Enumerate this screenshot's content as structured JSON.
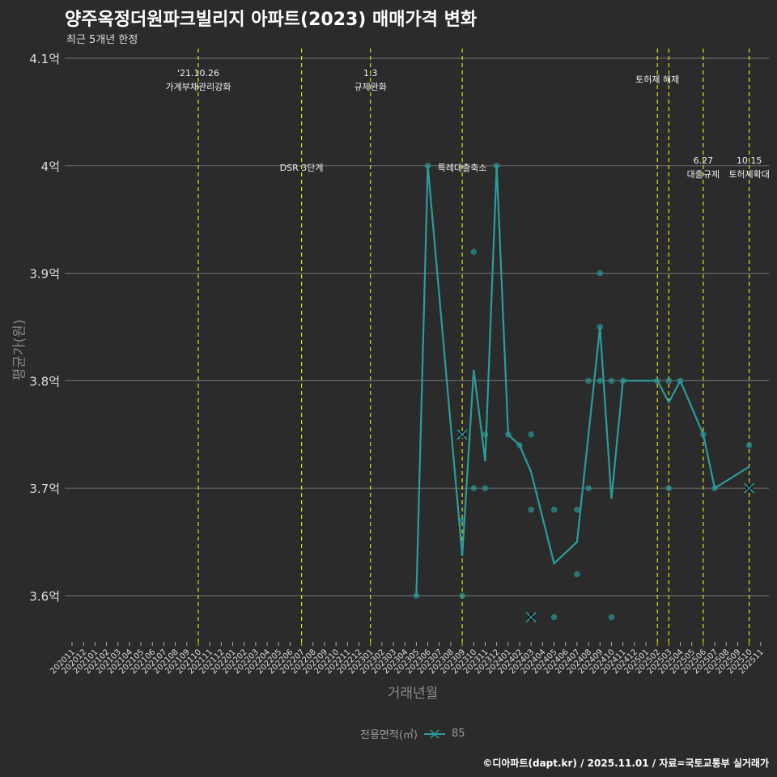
{
  "header": {
    "title": "양주옥정더원파크빌리지 아파트(2023) 매매가격 변화",
    "subtitle": "최근 5개년 한정"
  },
  "credit": "©디아파트(dapt.kr) / 2025.11.01 / 자료=국토교통부 실거래가",
  "legend": {
    "title": "전용면적(㎡)",
    "item": "85"
  },
  "chart_data": {
    "type": "line",
    "title": "양주옥정더원파크빌리지 아파트(2023) 매매가격 변화",
    "xlabel": "거래년월",
    "ylabel": "평균가(원)",
    "ylim": [
      3.56,
      4.11
    ],
    "yticks": [
      {
        "v": 3.6,
        "label": "3.6억"
      },
      {
        "v": 3.7,
        "label": "3.7억"
      },
      {
        "v": 3.8,
        "label": "3.8억"
      },
      {
        "v": 3.9,
        "label": "3.9억"
      },
      {
        "v": 4.0,
        "label": "4억"
      },
      {
        "v": 4.1,
        "label": "4.1억"
      }
    ],
    "categories": [
      "202011",
      "202012",
      "202101",
      "202102",
      "202103",
      "202104",
      "202105",
      "202106",
      "202107",
      "202108",
      "202109",
      "202110",
      "202111",
      "202112",
      "202201",
      "202202",
      "202203",
      "202204",
      "202205",
      "202206",
      "202207",
      "202208",
      "202209",
      "202210",
      "202211",
      "202212",
      "202301",
      "202302",
      "202303",
      "202304",
      "202305",
      "202306",
      "202307",
      "202308",
      "202309",
      "202310",
      "202311",
      "202312",
      "202401",
      "202402",
      "202403",
      "202404",
      "202405",
      "202406",
      "202407",
      "202408",
      "202409",
      "202410",
      "202411",
      "202412",
      "202501",
      "202502",
      "202503",
      "202504",
      "202505",
      "202506",
      "202507",
      "202508",
      "202509",
      "202510",
      "202511"
    ],
    "series": [
      {
        "name": "85",
        "color": "#2a9d9a",
        "line": [
          [
            "202305",
            3.6
          ],
          [
            "202306",
            4.0
          ],
          [
            "202309",
            3.637
          ],
          [
            "202310",
            3.81
          ],
          [
            "202311",
            3.725
          ],
          [
            "202312",
            4.0
          ],
          [
            "202401",
            3.75
          ],
          [
            "202402",
            3.74
          ],
          [
            "202403",
            3.715
          ],
          [
            "202405",
            3.63
          ],
          [
            "202407",
            3.65
          ],
          [
            "202409",
            3.85
          ],
          [
            "202410",
            3.69
          ],
          [
            "202411",
            3.8
          ],
          [
            "202502",
            3.8
          ],
          [
            "202503",
            3.78
          ],
          [
            "202504",
            3.8
          ],
          [
            "202506",
            3.75
          ],
          [
            "202507",
            3.7
          ],
          [
            "202510",
            3.72
          ]
        ],
        "points": [
          [
            "202305",
            3.6
          ],
          [
            "202306",
            4.0
          ],
          [
            "202309",
            3.67
          ],
          [
            "202309",
            3.6
          ],
          [
            "202310",
            3.92
          ],
          [
            "202310",
            3.7
          ],
          [
            "202311",
            3.75
          ],
          [
            "202311",
            3.7
          ],
          [
            "202312",
            4.0
          ],
          [
            "202401",
            3.75
          ],
          [
            "202402",
            3.74
          ],
          [
            "202403",
            3.75
          ],
          [
            "202403",
            3.68
          ],
          [
            "202405",
            3.68
          ],
          [
            "202405",
            3.58
          ],
          [
            "202407",
            3.68
          ],
          [
            "202407",
            3.62
          ],
          [
            "202408",
            3.8
          ],
          [
            "202408",
            3.7
          ],
          [
            "202409",
            3.9
          ],
          [
            "202409",
            3.85
          ],
          [
            "202409",
            3.8
          ],
          [
            "202410",
            3.8
          ],
          [
            "202410",
            3.58
          ],
          [
            "202411",
            3.8
          ],
          [
            "202502",
            3.8
          ],
          [
            "202503",
            3.8
          ],
          [
            "202503",
            3.7
          ],
          [
            "202504",
            3.8
          ],
          [
            "202506",
            3.75
          ],
          [
            "202507",
            3.7
          ],
          [
            "202510",
            3.74
          ]
        ],
        "cancelled": [
          [
            "202309",
            3.75
          ],
          [
            "202403",
            3.58
          ],
          [
            "202510",
            3.7
          ]
        ]
      }
    ],
    "events": [
      {
        "month": "202110",
        "line1": "'21.10.26",
        "line2": "가계부채관리강화",
        "pos": "top"
      },
      {
        "month": "202207",
        "line1": "",
        "line2": "DSR 3단계",
        "pos": "mid"
      },
      {
        "month": "202301",
        "line1": "1.3",
        "line2": "규제완화",
        "pos": "top"
      },
      {
        "month": "202309",
        "line1": "",
        "line2": "특례대출축소",
        "pos": "mid"
      },
      {
        "month": "202502",
        "line1": "",
        "line2": "토허제 해제",
        "pos": "top2"
      },
      {
        "month": "202503",
        "line1": "",
        "line2": "",
        "pos": "none"
      },
      {
        "month": "202506",
        "line1": "6.27",
        "line2": "대출규제",
        "pos": "mid2"
      },
      {
        "month": "202510",
        "line1": "10.15",
        "line2": "토허제확대",
        "pos": "mid2"
      }
    ]
  }
}
